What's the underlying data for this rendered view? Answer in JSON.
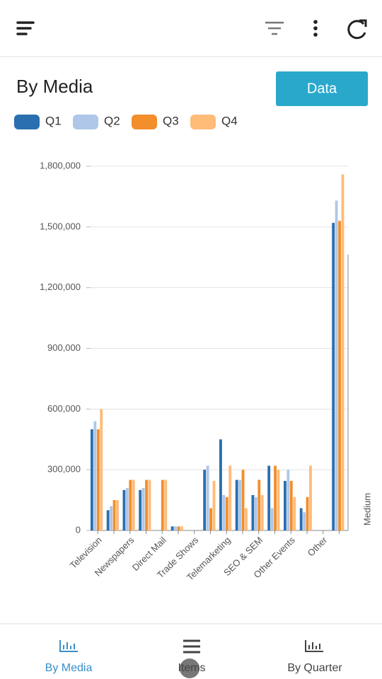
{
  "title": "By Media",
  "button": "Data",
  "nav": [
    "By Media",
    "Items",
    "By Quarter"
  ],
  "chart_data": {
    "type": "bar",
    "categories": [
      "Television",
      null,
      "Newspapers",
      null,
      "Direct Mail",
      null,
      "Trade Shows",
      null,
      "Telemarketing",
      null,
      "SEO & SEM",
      null,
      "Other Events",
      null,
      "Other",
      null
    ],
    "x_label": "Medium",
    "series": [
      {
        "name": "Q1",
        "color": "#2a6fb0",
        "values": [
          500000,
          100000,
          200000,
          200000,
          0,
          20000,
          0,
          300000,
          450000,
          250000,
          175000,
          320000,
          245000,
          110000,
          0,
          1520000
        ]
      },
      {
        "name": "Q2",
        "color": "#aec7e8",
        "values": [
          540000,
          120000,
          210000,
          210000,
          0,
          20000,
          0,
          320000,
          175000,
          250000,
          165000,
          110000,
          300000,
          90000,
          0,
          1630000
        ]
      },
      {
        "name": "Q3",
        "color": "#f28e2b",
        "values": [
          500000,
          150000,
          250000,
          250000,
          250000,
          20000,
          0,
          110000,
          165000,
          300000,
          250000,
          320000,
          245000,
          165000,
          0,
          1530000
        ]
      },
      {
        "name": "Q4",
        "color": "#ffbb78",
        "values": [
          600000,
          150000,
          250000,
          250000,
          250000,
          20000,
          0,
          245000,
          320000,
          110000,
          175000,
          300000,
          165000,
          320000,
          0,
          1760000
        ]
      }
    ],
    "ylim": [
      0,
      1800000
    ],
    "yticks": [
      0,
      {
        "value": 300000,
        "label": "300,000"
      },
      {
        "value": 600000,
        "label": "600,000"
      },
      {
        "value": 900000,
        "label": "900,000"
      },
      {
        "value": 1200000,
        "label": "1,200,000"
      },
      {
        "value": 1500000,
        "label": "1,500,000"
      },
      {
        "value": 1800000,
        "label": "1,800,000"
      }
    ],
    "grid": true,
    "legend": "top-left"
  }
}
